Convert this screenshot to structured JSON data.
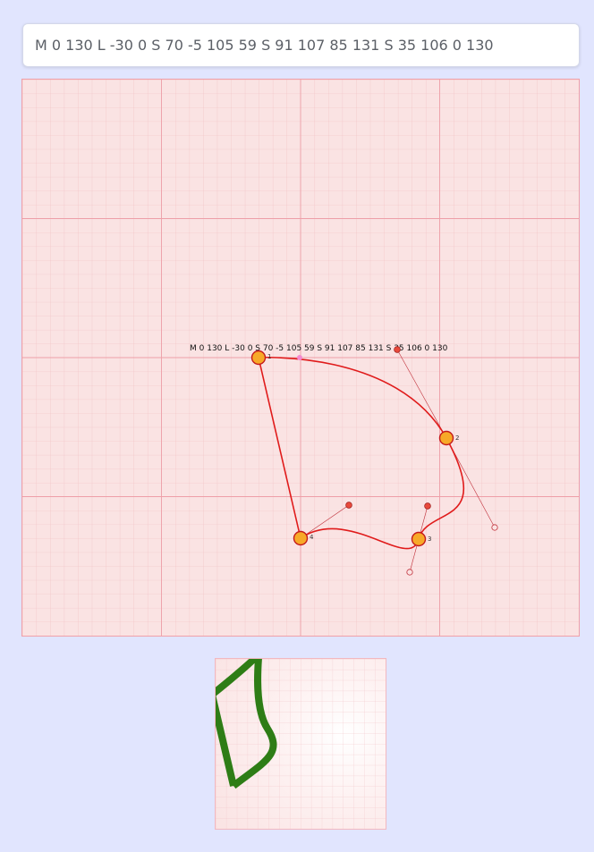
{
  "path_input": {
    "value": "M 0 130 L -30 0 S 70 -5 105 59 S 91 107 85 131 S 35 106 0 130"
  },
  "editor": {
    "path_label": "M 0 130 L -30 0 S 70 -5 105 59 S 91 107 85 131 S 35 106 0 130",
    "points": [
      {
        "label": "1"
      },
      {
        "label": "2"
      },
      {
        "label": "3"
      },
      {
        "label": "4"
      }
    ]
  },
  "colors": {
    "page_background": "#e1e5fe",
    "grid_background": "#fae3e3",
    "curve": "#e01b1b",
    "anchor_fill": "#f7a928",
    "preview_stroke": "#2e7d16"
  }
}
